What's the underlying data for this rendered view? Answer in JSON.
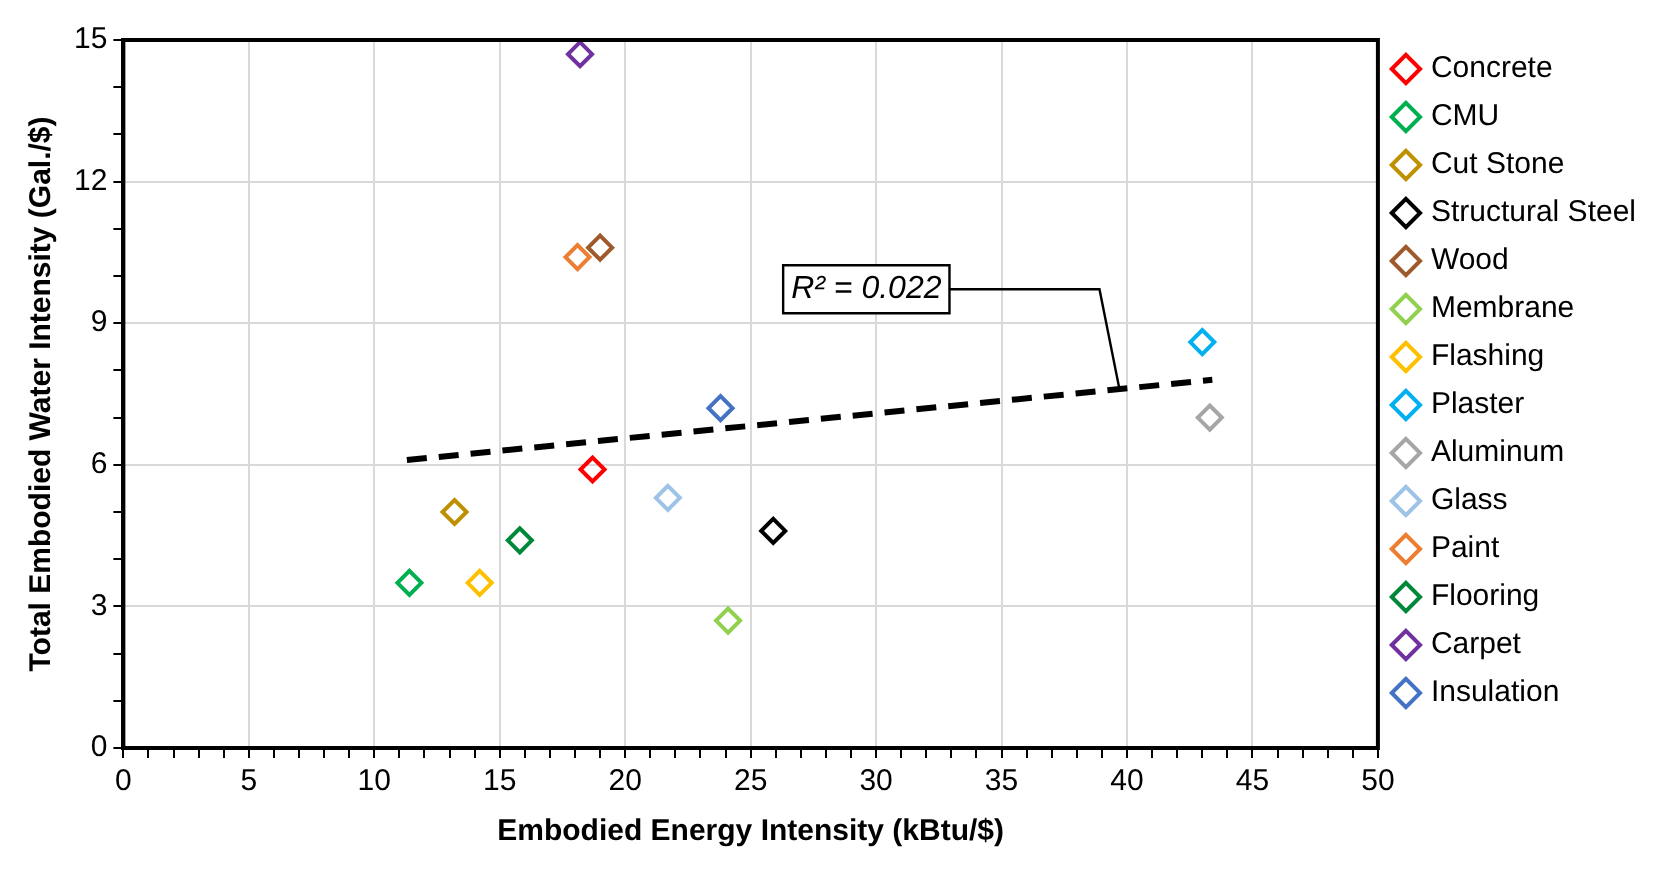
{
  "chart_data": {
    "type": "scatter",
    "xlabel": "Embodied Energy Intensity (kBtu/$)",
    "ylabel": "Total Embodied Water Intensity (Gal./$)",
    "xlim": [
      0,
      50
    ],
    "ylim": [
      0,
      15
    ],
    "xticks": [
      0,
      {
        "value": 1,
        "label": null
      },
      {
        "value": 2,
        "label": null
      },
      {
        "value": 3,
        "label": null
      },
      {
        "value": 4,
        "label": null
      },
      5,
      {
        "value": 6,
        "label": null
      },
      {
        "value": 7,
        "label": null
      },
      {
        "value": 8,
        "label": null
      },
      {
        "value": 9,
        "label": null
      },
      10,
      {
        "value": 11,
        "label": null
      },
      {
        "value": 12,
        "label": null
      },
      {
        "value": 13,
        "label": null
      },
      {
        "value": 14,
        "label": null
      },
      15,
      {
        "value": 16,
        "label": null
      },
      {
        "value": 17,
        "label": null
      },
      {
        "value": 18,
        "label": null
      },
      {
        "value": 19,
        "label": null
      },
      20,
      {
        "value": 21,
        "label": null
      },
      {
        "value": 22,
        "label": null
      },
      {
        "value": 23,
        "label": null
      },
      {
        "value": 24,
        "label": null
      },
      25,
      {
        "value": 26,
        "label": null
      },
      {
        "value": 27,
        "label": null
      },
      {
        "value": 28,
        "label": null
      },
      {
        "value": 29,
        "label": null
      },
      30,
      {
        "value": 31,
        "label": null
      },
      {
        "value": 32,
        "label": null
      },
      {
        "value": 33,
        "label": null
      },
      {
        "value": 34,
        "label": null
      },
      35,
      {
        "value": 36,
        "label": null
      },
      {
        "value": 37,
        "label": null
      },
      {
        "value": 38,
        "label": null
      },
      {
        "value": 39,
        "label": null
      },
      40,
      {
        "value": 41,
        "label": null
      },
      {
        "value": 42,
        "label": null
      },
      {
        "value": 43,
        "label": null
      },
      {
        "value": 44,
        "label": null
      },
      45,
      {
        "value": 46,
        "label": null
      },
      {
        "value": 47,
        "label": null
      },
      {
        "value": 48,
        "label": null
      },
      {
        "value": 49,
        "label": null
      },
      50
    ],
    "yticks": [
      0,
      {
        "value": 1,
        "label": null
      },
      {
        "value": 2,
        "label": null
      },
      3,
      {
        "value": 4,
        "label": null
      },
      {
        "value": 5,
        "label": null
      },
      6,
      {
        "value": 7,
        "label": null
      },
      {
        "value": 8,
        "label": null
      },
      9,
      {
        "value": 10,
        "label": null
      },
      {
        "value": 11,
        "label": null
      },
      12,
      {
        "value": 13,
        "label": null
      },
      {
        "value": 14,
        "label": null
      },
      15
    ],
    "grid": true,
    "legend": "right",
    "marker": "diamond",
    "series": [
      {
        "name": "Concrete",
        "color": "#ff0000",
        "x": [
          18.7
        ],
        "values": [
          5.9
        ]
      },
      {
        "name": "CMU",
        "color": "#00b050",
        "x": [
          11.4
        ],
        "values": [
          3.5
        ]
      },
      {
        "name": "Cut Stone",
        "color": "#bf9000",
        "x": [
          13.2
        ],
        "values": [
          5.0
        ]
      },
      {
        "name": "Structural Steel",
        "color": "#000000",
        "x": [
          25.9
        ],
        "values": [
          4.6
        ]
      },
      {
        "name": "Wood",
        "color": "#9e5a2a",
        "x": [
          19.0
        ],
        "values": [
          10.6
        ]
      },
      {
        "name": "Membrane",
        "color": "#92d050",
        "x": [
          24.1
        ],
        "values": [
          2.7
        ]
      },
      {
        "name": "Flashing",
        "color": "#ffc000",
        "x": [
          14.2
        ],
        "values": [
          3.5
        ]
      },
      {
        "name": "Plaster",
        "color": "#00b0f0",
        "x": [
          43.0
        ],
        "values": [
          8.6
        ]
      },
      {
        "name": "Aluminum",
        "color": "#a6a6a6",
        "x": [
          43.3
        ],
        "values": [
          7.0
        ]
      },
      {
        "name": "Glass",
        "color": "#9dc3e6",
        "x": [
          21.7
        ],
        "values": [
          5.3
        ]
      },
      {
        "name": "Paint",
        "color": "#ed7d31",
        "x": [
          18.1
        ],
        "values": [
          10.4
        ]
      },
      {
        "name": "Flooring",
        "color": "#00883a",
        "x": [
          15.8
        ],
        "values": [
          4.4
        ]
      },
      {
        "name": "Carpet",
        "color": "#7030a0",
        "x": [
          18.2
        ],
        "values": [
          14.7
        ]
      },
      {
        "name": "Insulation",
        "color": "#4472c4",
        "x": [
          23.8
        ],
        "values": [
          7.2
        ]
      },
      {
        "type": "line",
        "color": "#000000",
        "line_style": "dashed",
        "marker": "none",
        "x": [
          11.3,
          43.4
        ],
        "values": [
          6.1,
          7.8
        ]
      }
    ],
    "annotations": [
      {
        "text": "R² = 0.022",
        "x": 39.7,
        "y": 7.6
      }
    ]
  }
}
